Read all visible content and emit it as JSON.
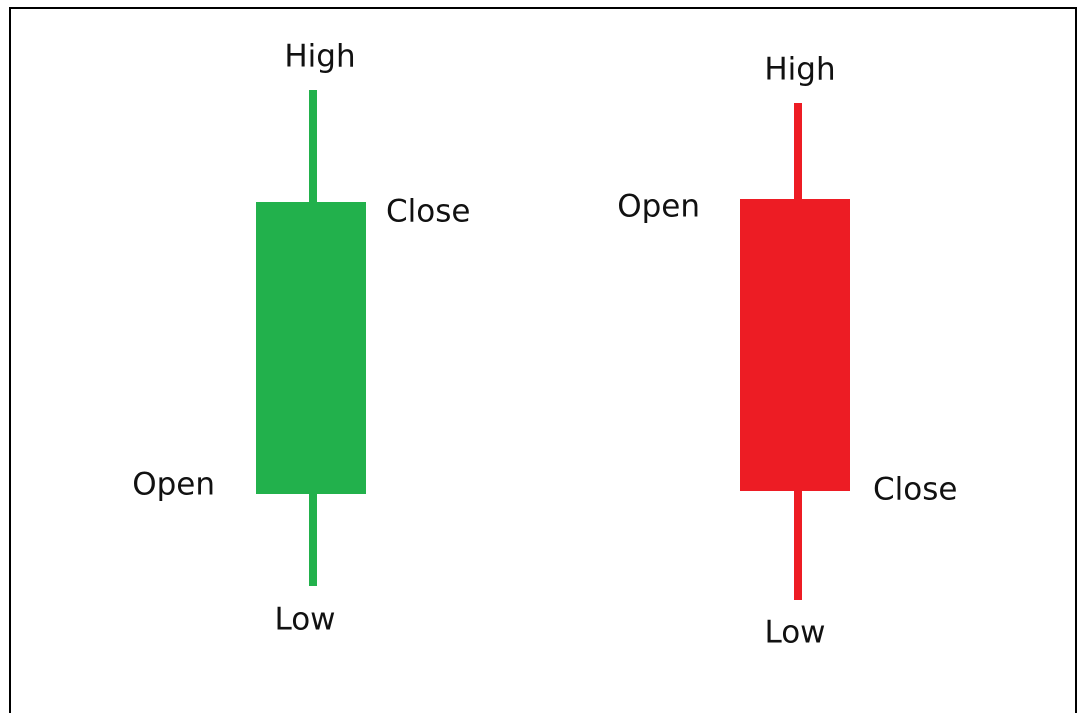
{
  "candles": [
    {
      "high": "High",
      "close": "Close",
      "open": "Open",
      "low": "Low"
    },
    {
      "high": "High",
      "open": "Open",
      "close": "Close",
      "low": "Low"
    }
  ]
}
